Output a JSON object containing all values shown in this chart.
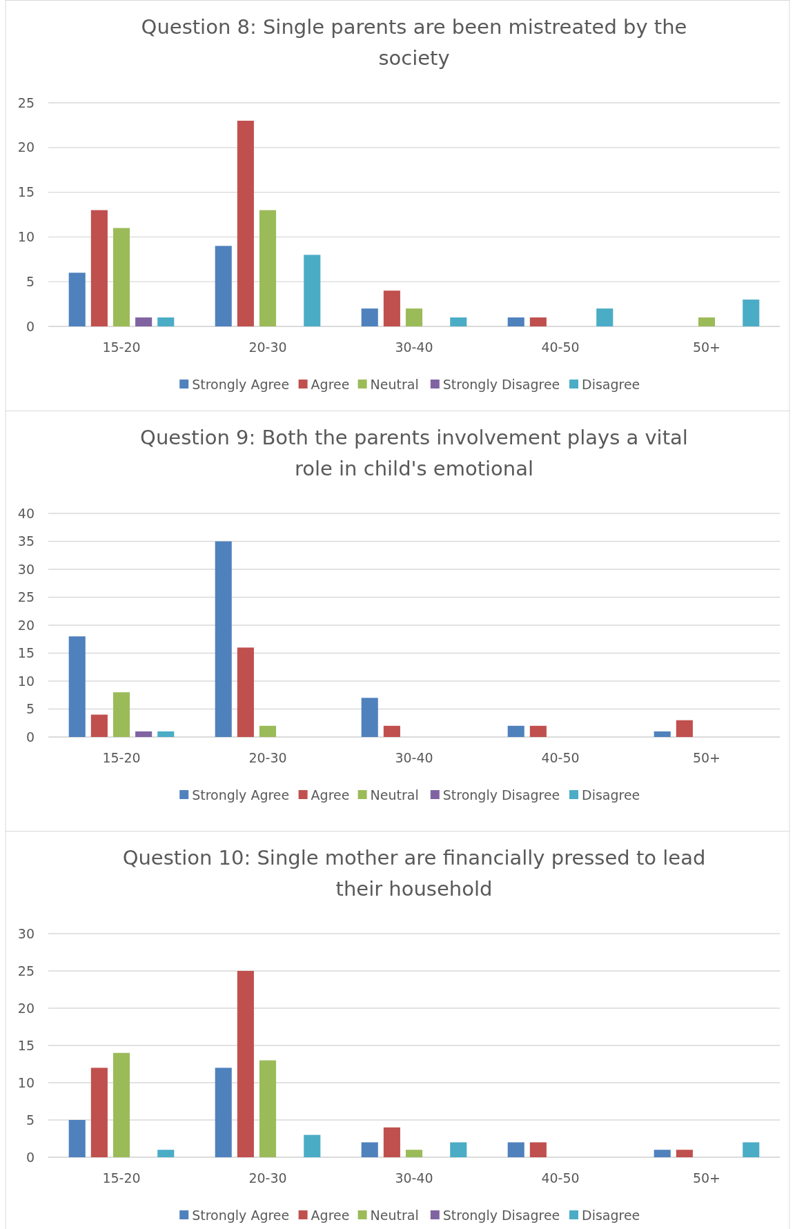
{
  "chart_data": [
    {
      "type": "bar",
      "title": "Question 8: Single parents are been mistreated by the society",
      "categories": [
        "15-20",
        "20-30",
        "30-40",
        "40-50",
        "50+"
      ],
      "series": [
        {
          "name": "Strongly Agree",
          "color": "#4f81bd",
          "values": [
            6,
            9,
            2,
            1,
            0
          ]
        },
        {
          "name": "Agree",
          "color": "#c0504d",
          "values": [
            13,
            23,
            4,
            1,
            0
          ]
        },
        {
          "name": "Neutral",
          "color": "#9bbb59",
          "values": [
            11,
            13,
            2,
            0,
            1
          ]
        },
        {
          "name": "Strongly Disagree",
          "color": "#8064a2",
          "values": [
            1,
            0,
            0,
            0,
            0
          ]
        },
        {
          "name": "Disagree",
          "color": "#4bacc6",
          "values": [
            1,
            8,
            1,
            2,
            3
          ]
        }
      ],
      "ylim": [
        0,
        25
      ],
      "yticks": [
        0,
        5,
        10,
        15,
        20,
        25
      ],
      "grid": "y",
      "legend": "bottom"
    },
    {
      "type": "bar",
      "title": "Question 9: Both the parents involvement plays a vital role in child's emotional",
      "categories": [
        "15-20",
        "20-30",
        "30-40",
        "40-50",
        "50+"
      ],
      "series": [
        {
          "name": "Strongly Agree",
          "color": "#4f81bd",
          "values": [
            18,
            35,
            7,
            2,
            1
          ]
        },
        {
          "name": "Agree",
          "color": "#c0504d",
          "values": [
            4,
            16,
            2,
            2,
            3
          ]
        },
        {
          "name": "Neutral",
          "color": "#9bbb59",
          "values": [
            8,
            2,
            0,
            0,
            0
          ]
        },
        {
          "name": "Strongly Disagree",
          "color": "#8064a2",
          "values": [
            1,
            0,
            0,
            0,
            0
          ]
        },
        {
          "name": "Disagree",
          "color": "#4bacc6",
          "values": [
            1,
            0,
            0,
            0,
            0
          ]
        }
      ],
      "ylim": [
        0,
        40
      ],
      "yticks": [
        0,
        5,
        10,
        15,
        20,
        25,
        30,
        35,
        40
      ],
      "grid": "y",
      "legend": "bottom"
    },
    {
      "type": "bar",
      "title": "Question 10: Single mother are financially pressed to lead their household",
      "categories": [
        "15-20",
        "20-30",
        "30-40",
        "40-50",
        "50+"
      ],
      "series": [
        {
          "name": "Strongly Agree",
          "color": "#4f81bd",
          "values": [
            5,
            12,
            2,
            2,
            1
          ]
        },
        {
          "name": "Agree",
          "color": "#c0504d",
          "values": [
            12,
            25,
            4,
            2,
            1
          ]
        },
        {
          "name": "Neutral",
          "color": "#9bbb59",
          "values": [
            14,
            13,
            1,
            0,
            0
          ]
        },
        {
          "name": "Strongly Disagree",
          "color": "#8064a2",
          "values": [
            0,
            0,
            0,
            0,
            0
          ]
        },
        {
          "name": "Disagree",
          "color": "#4bacc6",
          "values": [
            1,
            3,
            2,
            0,
            2
          ]
        }
      ],
      "ylim": [
        0,
        30
      ],
      "yticks": [
        0,
        5,
        10,
        15,
        20,
        25,
        30
      ],
      "grid": "y",
      "legend": "bottom"
    }
  ]
}
